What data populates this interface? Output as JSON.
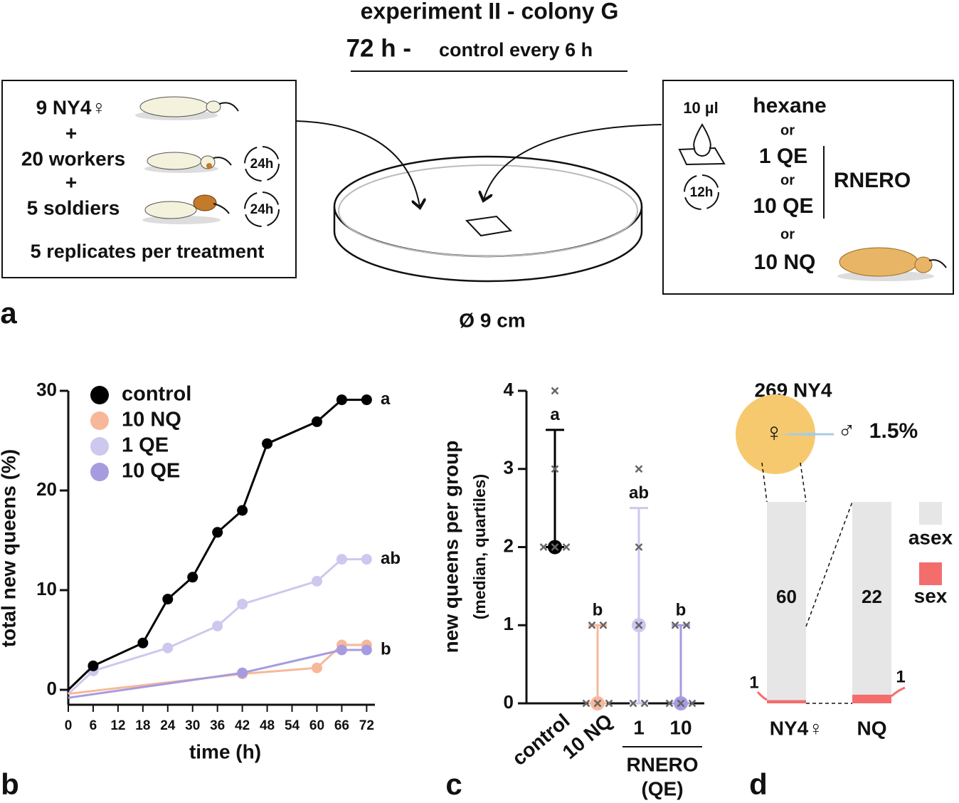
{
  "panel_a": {
    "letter": "a",
    "title": "experiment II - colony G",
    "duration": "72 h -",
    "interval": "control every 6 h",
    "left_box": {
      "lines": [
        "9 NY4♀",
        "+",
        "20 workers",
        "+",
        "5 soldiers"
      ],
      "cycle_labels": [
        "24h",
        "24h"
      ],
      "note": "5 replicates per treatment"
    },
    "dish_label": "Ø 9 cm",
    "right_box": {
      "volume": "10 µl",
      "cycle_label": "12h",
      "options": [
        "hexane",
        "or",
        "1 QE",
        "or",
        "10 QE",
        "or",
        "10 NQ"
      ],
      "bracket_label": "RNERO"
    }
  },
  "chart_data": [
    {
      "type": "line",
      "panel": "b",
      "xlabel": "time (h)",
      "ylabel": "total new queens (%)",
      "xlim": [
        0,
        74
      ],
      "ylim": [
        -1.5,
        30
      ],
      "xticks": [
        0,
        6,
        12,
        18,
        24,
        30,
        36,
        42,
        48,
        54,
        60,
        66,
        72
      ],
      "yticks": [
        0,
        10,
        20,
        30
      ],
      "series": [
        {
          "name": "control",
          "color": "#000000",
          "letter": "a",
          "x": [
            0,
            6,
            18,
            24,
            30,
            36,
            42,
            48,
            60,
            66,
            72
          ],
          "values": [
            0,
            2.4,
            4.7,
            9.1,
            11.3,
            15.8,
            18,
            24.7,
            26.9,
            29.1,
            29.1
          ]
        },
        {
          "name": "10 NQ",
          "color": "#f7b89a",
          "x": [
            0,
            42,
            60,
            66,
            72
          ],
          "values": [
            -0.4,
            1.6,
            2.2,
            4.5,
            4.5
          ]
        },
        {
          "name": "1 QE",
          "color": "#cdc8ee",
          "letter": "ab",
          "x": [
            0,
            6,
            24,
            36,
            42,
            60,
            66,
            72
          ],
          "values": [
            -0.4,
            1.9,
            4.2,
            6.4,
            8.6,
            10.9,
            13.1,
            13.1
          ]
        },
        {
          "name": "10 QE",
          "color": "#a79be0",
          "letter": "b",
          "x": [
            0,
            42,
            66,
            72
          ],
          "values": [
            -0.8,
            1.7,
            4,
            4
          ]
        }
      ]
    },
    {
      "type": "median_quartiles",
      "panel": "c",
      "ylabel": "new queens per group",
      "ylabel_note": "(median, quartiles)",
      "ylim": [
        0,
        4
      ],
      "yticks": [
        0,
        1,
        2,
        3,
        4
      ],
      "categories": [
        "control",
        "10 NQ",
        "1",
        "10"
      ],
      "group_label": [
        "RNERO",
        "(QE)"
      ],
      "colors": [
        "#000000",
        "#f7b89a",
        "#cdc8ee",
        "#a79be0"
      ],
      "medians": [
        2,
        0,
        1,
        0
      ],
      "q1": [
        2,
        0,
        0,
        0
      ],
      "q3": [
        3.5,
        1,
        2.5,
        1
      ],
      "points": [
        [
          4,
          3,
          2,
          2,
          2
        ],
        [
          1,
          1,
          0,
          0,
          0
        ],
        [
          3,
          2,
          1,
          0,
          0
        ],
        [
          1,
          1,
          0,
          0,
          0
        ]
      ],
      "letters": [
        "a",
        "b",
        "ab",
        "b"
      ]
    },
    {
      "type": "stacked_bar",
      "panel": "d",
      "pie": {
        "title": "269 NY4",
        "female_symbol": "♀",
        "male_symbol": "♂",
        "male_value": 1.5,
        "male_label": "1.5%",
        "color": "#f7c96e",
        "male_color": "#a9cbe0"
      },
      "categories": [
        "NY4♀",
        "NQ"
      ],
      "series": [
        {
          "name": "asex",
          "color": "#e6e6e6",
          "values": [
            60,
            22
          ]
        },
        {
          "name": "sex",
          "color": "#f46d6d",
          "values": [
            1,
            1
          ]
        }
      ]
    }
  ]
}
